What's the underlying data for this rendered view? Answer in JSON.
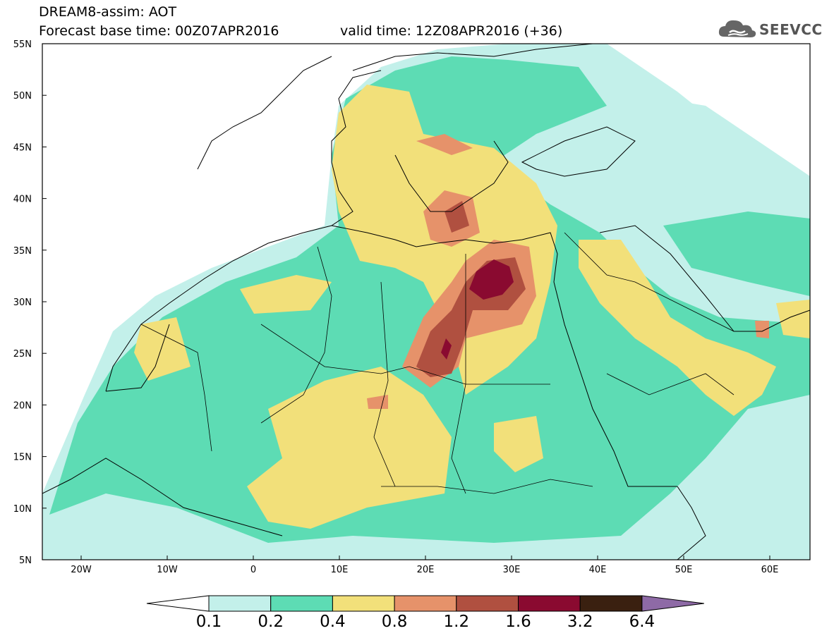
{
  "header": {
    "title_line1": "DREAM8-assim: AOT",
    "title_line2": "Forecast base time: 00Z07APR2016",
    "valid_time": "valid time: 12Z08APR2016 (+36)",
    "logo_text": "SEEVCCC",
    "logo_icon": "cloud-icon"
  },
  "map": {
    "lon_ticks": [
      "20W",
      "10W",
      "0",
      "10E",
      "20E",
      "30E",
      "40E",
      "50E",
      "60E"
    ],
    "lat_ticks": [
      "55N",
      "50N",
      "45N",
      "40N",
      "35N",
      "30N",
      "25N",
      "20N",
      "15N",
      "10N",
      "5N"
    ]
  },
  "legend": {
    "labels": [
      "0.1",
      "0.2",
      "0.4",
      "0.8",
      "1.2",
      "1.6",
      "3.2",
      "6.4"
    ],
    "colors": [
      "#ffffff",
      "#c3f0ea",
      "#5ddcb4",
      "#f2e07a",
      "#e6926a",
      "#b05040",
      "#8a0a30",
      "#3a2010",
      "#8e6aa6"
    ]
  }
}
